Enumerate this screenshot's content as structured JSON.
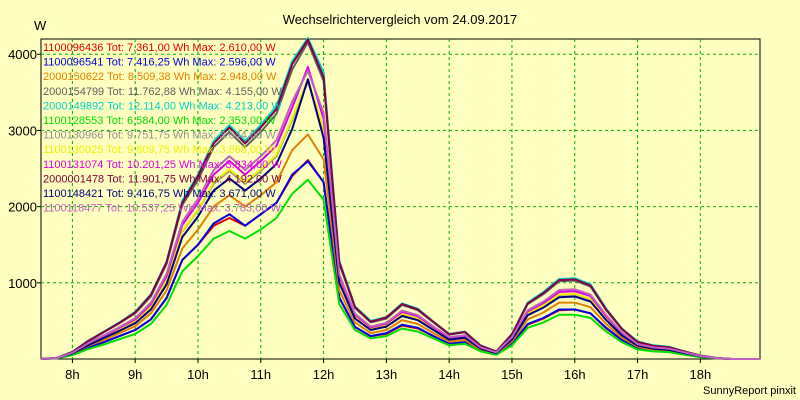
{
  "chart_data": {
    "type": "line",
    "title": "Wechselrichtervergleich vom 24.09.2017",
    "ylabel": "W",
    "xlabel": "",
    "footer": "SunnyReport pinxit",
    "xlim": [
      7.5,
      18.95
    ],
    "ylim": [
      0,
      4200
    ],
    "yticks": [
      1000,
      2000,
      3000,
      4000
    ],
    "xticks": [
      {
        "value": 8,
        "label": "8h"
      },
      {
        "value": 9,
        "label": "9h"
      },
      {
        "value": 10,
        "label": "10h"
      },
      {
        "value": 11,
        "label": "11h"
      },
      {
        "value": 12,
        "label": "12h"
      },
      {
        "value": 13,
        "label": "13h"
      },
      {
        "value": 14,
        "label": "14h"
      },
      {
        "value": 15,
        "label": "15h"
      },
      {
        "value": 16,
        "label": "16h"
      },
      {
        "value": 17,
        "label": "17h"
      },
      {
        "value": 18,
        "label": "18h"
      }
    ],
    "grid": true,
    "legend_position": "top-left",
    "x": [
      7.5,
      7.75,
      8.0,
      8.25,
      8.5,
      8.75,
      9.0,
      9.25,
      9.5,
      9.75,
      10.0,
      10.25,
      10.5,
      10.75,
      11.0,
      11.25,
      11.5,
      11.75,
      12.0,
      12.25,
      12.5,
      12.75,
      13.0,
      13.25,
      13.5,
      13.75,
      14.0,
      14.25,
      14.5,
      14.75,
      15.0,
      15.25,
      15.5,
      15.75,
      16.0,
      16.25,
      16.5,
      16.75,
      17.0,
      17.25,
      17.5,
      17.75,
      18.0,
      18.25,
      18.5,
      18.75,
      18.95
    ],
    "series": [
      {
        "name": "1100096436",
        "legend": "1100096436 Tot: 7.361,00 Wh Max: 2.610,00 W",
        "color": "#e00000",
        "values": [
          0,
          10,
          60,
          150,
          220,
          300,
          380,
          520,
          800,
          1300,
          1500,
          1750,
          1850,
          1750,
          1900,
          2050,
          2400,
          2610,
          2320,
          800,
          420,
          300,
          330,
          440,
          400,
          300,
          200,
          220,
          110,
          60,
          200,
          450,
          530,
          640,
          650,
          600,
          400,
          250,
          140,
          110,
          100,
          60,
          30,
          10,
          0,
          0,
          0
        ]
      },
      {
        "name": "1100096541",
        "legend": "1100096541 Tot: 7.416,25 Wh Max: 2.596,00 W",
        "color": "#0000e0",
        "values": [
          0,
          10,
          60,
          150,
          220,
          300,
          380,
          520,
          800,
          1300,
          1500,
          1780,
          1900,
          1750,
          1900,
          2050,
          2420,
          2596,
          2320,
          810,
          420,
          300,
          340,
          450,
          410,
          300,
          200,
          220,
          110,
          60,
          200,
          460,
          540,
          650,
          650,
          600,
          410,
          250,
          140,
          110,
          100,
          60,
          30,
          10,
          0,
          0,
          0
        ]
      },
      {
        "name": "2000150622",
        "legend": "2000150622 Tot: 8.509,38 Wh Max: 2.948,00 W",
        "color": "#e08000",
        "values": [
          0,
          10,
          70,
          170,
          250,
          340,
          430,
          600,
          900,
          1450,
          1700,
          2000,
          2150,
          2000,
          2150,
          2320,
          2740,
          2948,
          2620,
          900,
          480,
          340,
          380,
          510,
          460,
          340,
          230,
          250,
          120,
          70,
          230,
          520,
          610,
          740,
          740,
          680,
          460,
          280,
          160,
          120,
          110,
          70,
          35,
          10,
          0,
          0,
          0
        ]
      },
      {
        "name": "2000154799",
        "legend": "2000154799 Tot: 11.762,88 Wh Max: 4.155,00 W",
        "color": "#606060",
        "values": [
          0,
          15,
          90,
          230,
          350,
          470,
          600,
          820,
          1250,
          2020,
          2350,
          2780,
          2980,
          2780,
          2980,
          3220,
          3800,
          4155,
          3650,
          1250,
          670,
          480,
          530,
          710,
          640,
          480,
          320,
          350,
          170,
          95,
          320,
          720,
          850,
          1020,
          1030,
          950,
          640,
          390,
          220,
          170,
          150,
          95,
          45,
          15,
          0,
          0,
          0
        ]
      },
      {
        "name": "2000149892",
        "legend": "2000149892 Tot: 12.114,00 Wh Max: 4.213,00 W",
        "color": "#00d0d0",
        "values": [
          0,
          15,
          95,
          240,
          360,
          480,
          620,
          850,
          1280,
          2080,
          2420,
          2860,
          3070,
          2860,
          3070,
          3320,
          3910,
          4213,
          3760,
          1290,
          690,
          500,
          550,
          730,
          660,
          490,
          330,
          360,
          180,
          100,
          330,
          740,
          880,
          1050,
          1060,
          980,
          660,
          400,
          230,
          180,
          160,
          100,
          45,
          15,
          0,
          0,
          0
        ]
      },
      {
        "name": "1100128553",
        "legend": "1100128553 Tot: 6.584,00 Wh Max: 2.353,00 W",
        "color": "#00e000",
        "values": [
          0,
          8,
          50,
          130,
          190,
          260,
          330,
          460,
          710,
          1150,
          1350,
          1580,
          1680,
          1580,
          1700,
          1850,
          2170,
          2353,
          2090,
          720,
          380,
          270,
          300,
          400,
          360,
          270,
          180,
          200,
          100,
          55,
          180,
          410,
          480,
          580,
          580,
          540,
          360,
          220,
          125,
          100,
          90,
          55,
          25,
          8,
          0,
          0,
          0
        ]
      },
      {
        "name": "1100130966",
        "legend": "1100130966 Tot: 9.751,75 Wh Max: 3.644,00 W",
        "color": "#909090",
        "values": [
          0,
          12,
          75,
          190,
          290,
          390,
          500,
          680,
          1030,
          1670,
          1950,
          2300,
          2470,
          2300,
          2470,
          2660,
          3140,
          3644,
          3000,
          1030,
          550,
          395,
          440,
          590,
          530,
          395,
          265,
          290,
          140,
          80,
          265,
          595,
          700,
          840,
          850,
          785,
          530,
          320,
          180,
          140,
          125,
          80,
          35,
          12,
          0,
          0,
          0
        ]
      },
      {
        "name": "1100130025",
        "legend": "1100130025 Tot: 9.809,75 Wh Max: 3.668,00 W",
        "color": "#f0f000",
        "values": [
          0,
          12,
          75,
          190,
          290,
          390,
          500,
          690,
          1040,
          1680,
          1960,
          2320,
          2490,
          2320,
          2490,
          2680,
          3160,
          3668,
          3020,
          1040,
          555,
          400,
          445,
          595,
          535,
          400,
          268,
          293,
          142,
          80,
          268,
          600,
          705,
          846,
          856,
          790,
          535,
          323,
          182,
          142,
          126,
          80,
          36,
          12,
          0,
          0,
          0
        ]
      },
      {
        "name": "1100131074",
        "legend": "1100131074 Tot: 10.201,25 Wh Max: 3.834,00 W",
        "color": "#e000e0",
        "values": [
          0,
          13,
          80,
          200,
          300,
          410,
          520,
          720,
          1090,
          1760,
          2050,
          2420,
          2600,
          2420,
          2600,
          2800,
          3300,
          3834,
          3150,
          1085,
          580,
          415,
          465,
          620,
          560,
          415,
          280,
          305,
          148,
          84,
          280,
          625,
          735,
          880,
          890,
          825,
          560,
          338,
          190,
          148,
          132,
          84,
          38,
          13,
          0,
          0,
          0
        ]
      },
      {
        "name": "2000001478",
        "legend": "2000001478 Tot: 11.901,75 Wh Max: 4.192,00 W",
        "color": "#800040",
        "values": [
          0,
          15,
          93,
          235,
          355,
          475,
          610,
          840,
          1270,
          2050,
          2400,
          2830,
          3040,
          2830,
          3040,
          3280,
          3870,
          4192,
          3700,
          1270,
          680,
          490,
          545,
          720,
          650,
          485,
          325,
          355,
          175,
          98,
          325,
          730,
          865,
          1035,
          1045,
          965,
          650,
          395,
          225,
          175,
          155,
          98,
          45,
          15,
          0,
          0,
          0
        ]
      },
      {
        "name": "1100148421",
        "legend": "1100148421 Tot: 9.416,75 Wh Max: 3.671,00 W",
        "color": "#000080",
        "values": [
          0,
          12,
          72,
          180,
          275,
          370,
          470,
          650,
          980,
          1600,
          1870,
          2210,
          2370,
          2210,
          2370,
          2560,
          3020,
          3671,
          2900,
          1000,
          530,
          380,
          425,
          565,
          510,
          380,
          255,
          280,
          135,
          77,
          255,
          575,
          675,
          810,
          820,
          755,
          510,
          310,
          175,
          135,
          120,
          77,
          35,
          12,
          0,
          0,
          0
        ]
      },
      {
        "name": "1100118477",
        "legend": "1100118477 Tot: 10.537,25 Wh Max: 3.783,00 W",
        "color": "#c060c0",
        "values": [
          0,
          13,
          82,
          205,
          310,
          420,
          535,
          740,
          1120,
          1800,
          2100,
          2480,
          2660,
          2480,
          2660,
          2870,
          3380,
          3783,
          3230,
          1110,
          595,
          425,
          475,
          635,
          575,
          425,
          287,
          313,
          152,
          86,
          287,
          640,
          755,
          905,
          915,
          845,
          575,
          347,
          195,
          152,
          135,
          86,
          39,
          13,
          0,
          0,
          0
        ]
      }
    ]
  }
}
